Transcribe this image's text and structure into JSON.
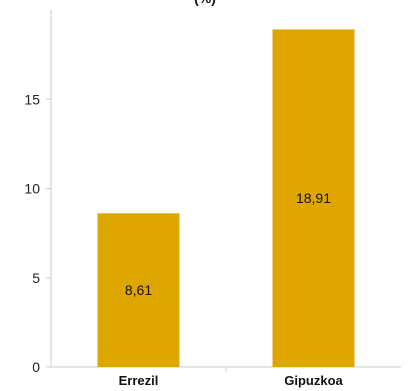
{
  "chart_data": {
    "type": "bar",
    "title": "(%)",
    "categories": [
      "Errezil",
      "Gipuzkoa"
    ],
    "values": [
      8.61,
      18.91
    ],
    "value_labels": [
      "8,61",
      "18,91"
    ],
    "xlabel": "",
    "ylabel": "",
    "ylim": [
      0,
      20
    ],
    "yticks": [
      0,
      5,
      10,
      15
    ],
    "ytick_labels": [
      "0",
      "5",
      "10",
      "15"
    ],
    "grid": false,
    "legend": "none"
  },
  "colors": {
    "bar": "#E0A600",
    "axis": "#cccccc",
    "text": "#111111"
  }
}
